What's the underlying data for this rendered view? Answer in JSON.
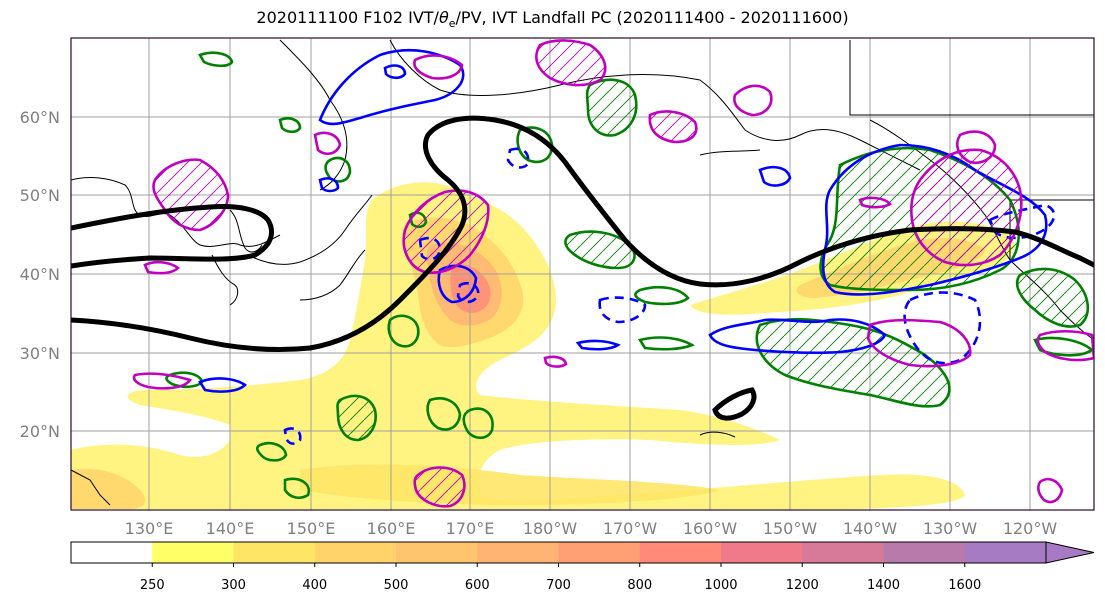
{
  "title": {
    "prefix": "2020111100 F102 IVT/",
    "theta": "θ",
    "theta_sub": "e",
    "suffix": "/PV, IVT Landfall PC (2020111400 - 2020111600)"
  },
  "lat_labels": [
    "60°N",
    "50°N",
    "40°N",
    "30°N",
    "20°N"
  ],
  "lon_labels": [
    "130°E",
    "140°E",
    "150°E",
    "160°E",
    "170°E",
    "180°W",
    "170°W",
    "160°W",
    "150°W",
    "140°W",
    "130°W",
    "120°W"
  ],
  "colorbar": {
    "ticks": [
      "250",
      "300",
      "400",
      "500",
      "600",
      "700",
      "800",
      "1000",
      "1200",
      "1400",
      "1600"
    ],
    "colors": [
      "#ffff66",
      "#ffe566",
      "#ffd36a",
      "#ffc46e",
      "#ffb474",
      "#ffa074",
      "#ff8a7a",
      "#f07a8a",
      "#d77a9a",
      "#b87aaa",
      "#a77ac4"
    ]
  },
  "colors": {
    "ivt_low": "#fff27a",
    "ivt_high": "#ff8a7a",
    "green_contour": "#008000",
    "blue_contour": "#0000ff",
    "magenta_contour": "#c000c0",
    "black_contour": "#000000",
    "grid": "#a0a0a0",
    "frame": "#2a0a2a"
  }
}
